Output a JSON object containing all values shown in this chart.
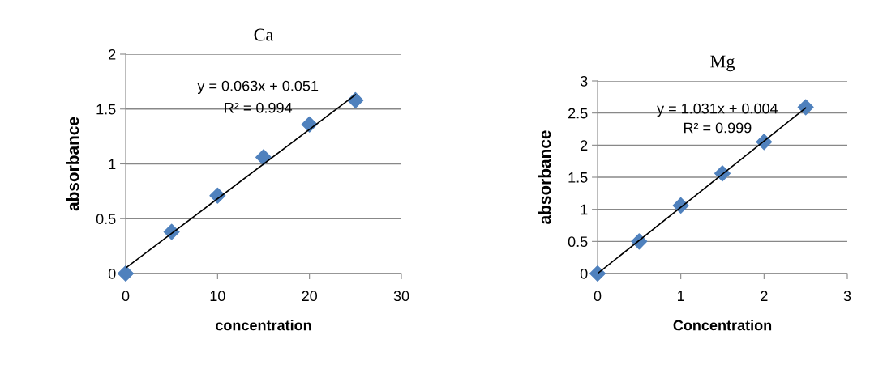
{
  "chart_data": [
    {
      "type": "scatter",
      "title": "Ca",
      "xlabel": "concentration",
      "ylabel": "absorbance",
      "xlim": [
        0,
        30
      ],
      "xticks": [
        0,
        10,
        20,
        30
      ],
      "ylim": [
        0,
        2
      ],
      "yticks": [
        0,
        0.5,
        1,
        1.5,
        2
      ],
      "grid": "y",
      "marker": "diamond",
      "annotations": [
        "y = 0.063x + 0.051",
        "R² = 0.994"
      ],
      "series": [
        {
          "color": "#4f81bd",
          "x": [
            0,
            5,
            10,
            15,
            20,
            25
          ],
          "values": [
            0,
            0.38,
            0.71,
            1.06,
            1.36,
            1.58
          ]
        },
        {
          "type": "line",
          "color": "#000000",
          "marker": "none",
          "x": [
            0,
            25
          ],
          "values": [
            0.05,
            1.63
          ]
        }
      ]
    },
    {
      "type": "scatter",
      "title": "Mg",
      "xlabel": "Concentration",
      "ylabel": "absorbance",
      "xlim": [
        0,
        3
      ],
      "xticks": [
        0,
        1,
        2,
        3
      ],
      "ylim": [
        0,
        3
      ],
      "yticks": [
        0,
        0.5,
        1,
        1.5,
        2,
        2.5,
        3
      ],
      "grid": "y",
      "marker": "diamond",
      "annotations": [
        "y = 1.031x + 0.004",
        "R² = 0.999"
      ],
      "series": [
        {
          "color": "#4f81bd",
          "x": [
            0,
            0.5,
            1,
            1.5,
            2,
            2.5
          ],
          "values": [
            0,
            0.5,
            1.06,
            1.56,
            2.05,
            2.59
          ]
        },
        {
          "type": "line",
          "color": "#000000",
          "marker": "none",
          "x": [
            0,
            2.5
          ],
          "values": [
            0,
            2.58
          ]
        }
      ]
    }
  ]
}
